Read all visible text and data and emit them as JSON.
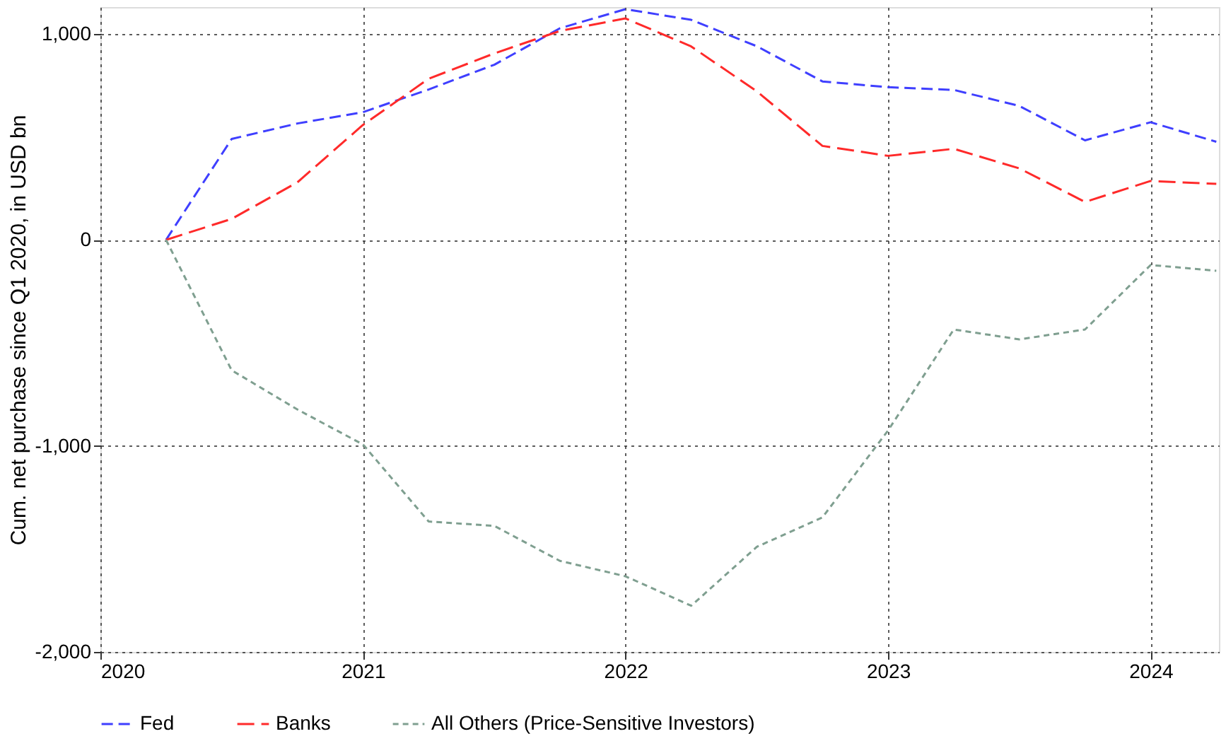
{
  "chart_data": {
    "type": "line",
    "ylabel": "Cum. net purchase since Q1 2020, in USD bn",
    "x": [
      2020.25,
      2020.5,
      2020.75,
      2021,
      2021.25,
      2021.5,
      2021.75,
      2022,
      2022.25,
      2022.5,
      2022.75,
      2023,
      2023.25,
      2023.5,
      2023.75,
      2024,
      2024.25
    ],
    "series": [
      {
        "name": "Fed",
        "color": "#3f3fff",
        "line_style": "dashed",
        "values": [
          0,
          490,
          565,
          620,
          730,
          850,
          1027,
          1120,
          1068,
          940,
          769,
          741,
          728,
          650,
          483,
          571,
          476
        ]
      },
      {
        "name": "Banks",
        "color": "#ff2a2a",
        "line_style": "longdashed",
        "values": [
          0,
          102,
          279,
          558,
          782,
          905,
          1014,
          1075,
          939,
          721,
          456,
          408,
          442,
          347,
          184,
          286,
          272
        ]
      },
      {
        "name": "All Others (Price-Sensitive Investors)",
        "color": "#7f9f90",
        "line_style": "dotted",
        "values": [
          0,
          -633,
          -823,
          -993,
          -1367,
          -1388,
          -1558,
          -1633,
          -1776,
          -1490,
          -1347,
          -925,
          -435,
          -483,
          -435,
          -122,
          -150
        ]
      }
    ],
    "xlim": [
      2020,
      2024.26
    ],
    "xticks": [
      2020,
      2021,
      2022,
      2023,
      2024
    ],
    "ylim": [
      -2000,
      1130
    ],
    "yticks": [
      {
        "value": -2000,
        "label": "-2,000"
      },
      {
        "value": -1000,
        "label": "-1,000"
      },
      0,
      {
        "value": 1000,
        "label": "1,000"
      }
    ],
    "grid": true,
    "legend": "bottom",
    "marker": "none"
  }
}
